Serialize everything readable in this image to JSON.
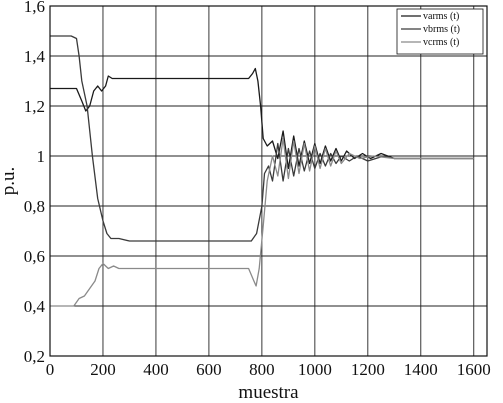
{
  "chart_data": {
    "type": "line",
    "xlabel": "muestra",
    "ylabel": "p.u.",
    "xlim": [
      0,
      1650
    ],
    "ylim": [
      0.2,
      1.6
    ],
    "x_ticks": [
      0,
      200,
      400,
      600,
      800,
      1000,
      1200,
      1400,
      1600
    ],
    "x_tick_labels": [
      "0",
      "200",
      "400",
      "600",
      "800",
      "1000",
      "1200",
      "1400",
      "1600"
    ],
    "y_ticks": [
      0.2,
      0.4,
      0.6,
      0.8,
      1.0,
      1.2,
      1.4,
      1.6
    ],
    "y_tick_labels": [
      "0,2",
      "0,4",
      "0,6",
      "0,8",
      "1",
      "1,2",
      "1,4",
      "1,6"
    ],
    "grid": true,
    "legend_position": "top-right",
    "series": [
      {
        "name": "varms (t)",
        "color": "#1a1a1a",
        "points": [
          [
            0,
            1.27
          ],
          [
            60,
            1.27
          ],
          [
            100,
            1.27
          ],
          [
            120,
            1.22
          ],
          [
            135,
            1.18
          ],
          [
            150,
            1.2
          ],
          [
            165,
            1.26
          ],
          [
            180,
            1.28
          ],
          [
            195,
            1.26
          ],
          [
            210,
            1.28
          ],
          [
            220,
            1.32
          ],
          [
            235,
            1.31
          ],
          [
            260,
            1.31
          ],
          [
            300,
            1.31
          ],
          [
            400,
            1.31
          ],
          [
            500,
            1.31
          ],
          [
            600,
            1.31
          ],
          [
            700,
            1.31
          ],
          [
            750,
            1.31
          ],
          [
            765,
            1.33
          ],
          [
            775,
            1.35
          ],
          [
            785,
            1.3
          ],
          [
            795,
            1.2
          ],
          [
            805,
            1.07
          ],
          [
            820,
            1.04
          ],
          [
            840,
            1.06
          ],
          [
            860,
            0.99
          ],
          [
            880,
            1.1
          ],
          [
            900,
            0.95
          ],
          [
            920,
            1.08
          ],
          [
            940,
            0.96
          ],
          [
            960,
            1.06
          ],
          [
            980,
            0.97
          ],
          [
            1000,
            1.05
          ],
          [
            1020,
            0.97
          ],
          [
            1040,
            1.04
          ],
          [
            1060,
            0.98
          ],
          [
            1080,
            1.03
          ],
          [
            1100,
            0.98
          ],
          [
            1120,
            1.02
          ],
          [
            1150,
            0.99
          ],
          [
            1180,
            1.01
          ],
          [
            1210,
            0.99
          ],
          [
            1250,
            1.01
          ],
          [
            1300,
            0.99
          ],
          [
            1400,
            0.99
          ],
          [
            1500,
            0.99
          ],
          [
            1600,
            0.99
          ]
        ]
      },
      {
        "name": "vbrms (t)",
        "color": "#3a3a3a",
        "points": [
          [
            0,
            1.48
          ],
          [
            80,
            1.48
          ],
          [
            100,
            1.47
          ],
          [
            110,
            1.4
          ],
          [
            120,
            1.3
          ],
          [
            140,
            1.2
          ],
          [
            160,
            1.0
          ],
          [
            180,
            0.83
          ],
          [
            200,
            0.74
          ],
          [
            215,
            0.69
          ],
          [
            230,
            0.67
          ],
          [
            260,
            0.67
          ],
          [
            300,
            0.66
          ],
          [
            400,
            0.66
          ],
          [
            500,
            0.66
          ],
          [
            600,
            0.66
          ],
          [
            700,
            0.66
          ],
          [
            760,
            0.66
          ],
          [
            780,
            0.69
          ],
          [
            800,
            0.8
          ],
          [
            810,
            0.93
          ],
          [
            825,
            0.96
          ],
          [
            840,
            0.9
          ],
          [
            860,
            1.05
          ],
          [
            880,
            0.9
          ],
          [
            900,
            1.03
          ],
          [
            920,
            0.92
          ],
          [
            940,
            1.03
          ],
          [
            960,
            0.94
          ],
          [
            980,
            1.02
          ],
          [
            1000,
            0.95
          ],
          [
            1020,
            1.01
          ],
          [
            1040,
            0.96
          ],
          [
            1060,
            1.01
          ],
          [
            1080,
            0.97
          ],
          [
            1100,
            1.0
          ],
          [
            1130,
            0.98
          ],
          [
            1160,
            1.0
          ],
          [
            1200,
            0.98
          ],
          [
            1260,
            1.0
          ],
          [
            1300,
            0.99
          ],
          [
            1400,
            0.99
          ],
          [
            1500,
            0.99
          ],
          [
            1600,
            0.99
          ]
        ]
      },
      {
        "name": "vcrms (t)",
        "color": "#8a8a8a",
        "points": [
          [
            0,
            0.4
          ],
          [
            50,
            0.4
          ],
          [
            90,
            0.4
          ],
          [
            110,
            0.43
          ],
          [
            130,
            0.44
          ],
          [
            150,
            0.47
          ],
          [
            170,
            0.5
          ],
          [
            185,
            0.55
          ],
          [
            200,
            0.57
          ],
          [
            220,
            0.55
          ],
          [
            240,
            0.56
          ],
          [
            260,
            0.55
          ],
          [
            300,
            0.55
          ],
          [
            400,
            0.55
          ],
          [
            500,
            0.55
          ],
          [
            600,
            0.55
          ],
          [
            700,
            0.55
          ],
          [
            750,
            0.55
          ],
          [
            770,
            0.5
          ],
          [
            778,
            0.48
          ],
          [
            790,
            0.55
          ],
          [
            805,
            0.72
          ],
          [
            820,
            0.9
          ],
          [
            840,
            1.0
          ],
          [
            860,
            0.92
          ],
          [
            880,
            1.07
          ],
          [
            900,
            0.91
          ],
          [
            920,
            1.06
          ],
          [
            940,
            0.93
          ],
          [
            960,
            1.05
          ],
          [
            980,
            0.94
          ],
          [
            1000,
            1.04
          ],
          [
            1020,
            0.95
          ],
          [
            1040,
            1.03
          ],
          [
            1060,
            0.96
          ],
          [
            1080,
            1.02
          ],
          [
            1100,
            0.97
          ],
          [
            1130,
            1.01
          ],
          [
            1170,
            0.99
          ],
          [
            1220,
            1.0
          ],
          [
            1300,
            0.99
          ],
          [
            1400,
            0.99
          ],
          [
            1500,
            0.99
          ],
          [
            1600,
            0.99
          ]
        ]
      }
    ]
  }
}
